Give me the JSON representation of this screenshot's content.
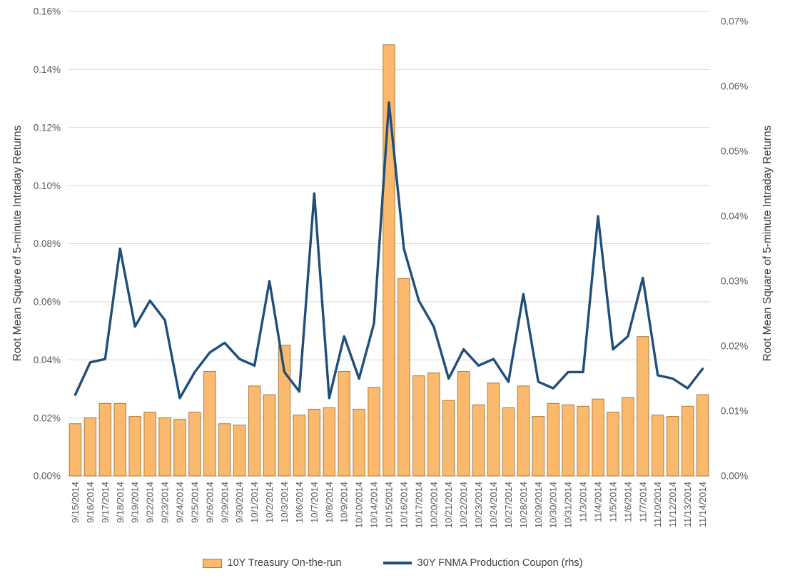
{
  "chart_data": {
    "type": "combo",
    "title": "",
    "grid": true,
    "legend_position": "bottom",
    "categories": [
      "9/15/2014",
      "9/16/2014",
      "9/17/2014",
      "9/18/2014",
      "9/19/2014",
      "9/22/2014",
      "9/23/2014",
      "9/24/2014",
      "9/25/2014",
      "9/26/2014",
      "9/29/2014",
      "9/30/2014",
      "10/1/2014",
      "10/2/2014",
      "10/3/2014",
      "10/6/2014",
      "10/7/2014",
      "10/8/2014",
      "10/9/2014",
      "10/10/2014",
      "10/14/2014",
      "10/15/2014",
      "10/16/2014",
      "10/17/2014",
      "10/20/2014",
      "10/21/2014",
      "10/22/2014",
      "10/23/2014",
      "10/24/2014",
      "10/27/2014",
      "10/28/2014",
      "10/29/2014",
      "10/30/2014",
      "10/31/2014",
      "11/3/2014",
      "11/4/2014",
      "11/5/2014",
      "11/6/2014",
      "11/7/2014",
      "11/10/2014",
      "11/12/2014",
      "11/13/2014",
      "11/14/2014"
    ],
    "series": [
      {
        "name": "10Y Treasury On-the-run",
        "type": "bar",
        "axis": "left",
        "values": [
          0.018,
          0.02,
          0.025,
          0.025,
          0.0205,
          0.022,
          0.02,
          0.0195,
          0.022,
          0.036,
          0.018,
          0.0175,
          0.031,
          0.028,
          0.045,
          0.021,
          0.023,
          0.0235,
          0.036,
          0.023,
          0.0305,
          0.1485,
          0.068,
          0.0345,
          0.0355,
          0.026,
          0.036,
          0.0245,
          0.032,
          0.0235,
          0.031,
          0.0205,
          0.025,
          0.0245,
          0.024,
          0.0265,
          0.022,
          0.027,
          0.048,
          0.021,
          0.0205,
          0.024,
          0.028
        ]
      },
      {
        "name": "30Y FNMA Production Coupon (rhs)",
        "type": "line",
        "axis": "right",
        "values": [
          0.0125,
          0.0175,
          0.018,
          0.035,
          0.023,
          0.027,
          0.024,
          0.012,
          0.016,
          0.019,
          0.0205,
          0.018,
          0.017,
          0.03,
          0.016,
          0.013,
          0.0435,
          0.012,
          0.0215,
          0.015,
          0.0235,
          0.0575,
          0.035,
          0.027,
          0.023,
          0.015,
          0.0195,
          0.017,
          0.018,
          0.0145,
          0.028,
          0.0145,
          0.0135,
          0.016,
          0.016,
          0.04,
          0.0195,
          0.0215,
          0.0305,
          0.0155,
          0.015,
          0.0135,
          0.0165
        ]
      }
    ],
    "left_axis": {
      "title": "Root Mean Square of 5-minute Intraday Returns",
      "min": 0,
      "max": 0.16,
      "step": 0.02,
      "tick_labels": [
        "0.00%",
        "0.02%",
        "0.04%",
        "0.06%",
        "0.08%",
        "0.10%",
        "0.12%",
        "0.14%",
        "0.16%"
      ]
    },
    "right_axis": {
      "title": "Root Mean Square of 5-minute Intraday Returns",
      "min": 0,
      "max": 0.07,
      "step": 0.01,
      "tick_labels": [
        "0.00%",
        "0.01%",
        "0.02%",
        "0.03%",
        "0.04%",
        "0.05%",
        "0.06%",
        "0.07%"
      ]
    },
    "colors": {
      "bar_fill": "#FBB96D",
      "bar_border": "#A87B3F",
      "line": "#1F4E79",
      "gridline": "#D9D9D9",
      "axis_line": "#BFBFBF",
      "tick_text": "#595959",
      "axis_title_text": "#3B3B3B",
      "legend_text": "#404040",
      "background": "#FFFFFF"
    }
  }
}
